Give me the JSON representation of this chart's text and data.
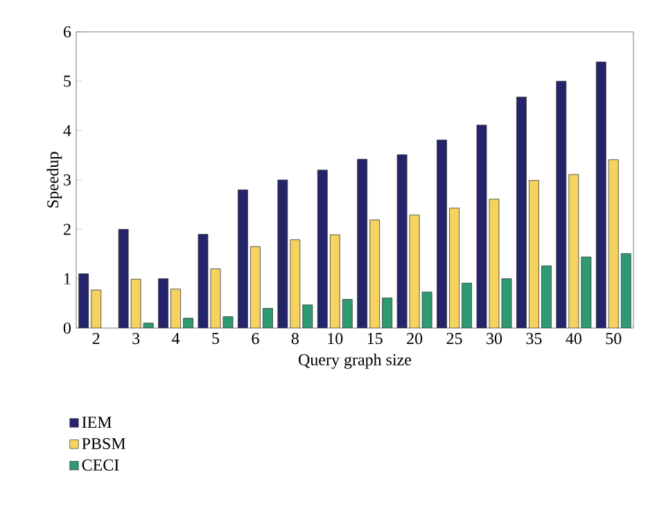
{
  "chart_data": {
    "type": "bar",
    "xlabel": "Query graph size",
    "ylabel": "Speedup",
    "categories": [
      "2",
      "3",
      "4",
      "5",
      "6",
      "8",
      "10",
      "15",
      "20",
      "25",
      "30",
      "35",
      "40",
      "50"
    ],
    "ylim": [
      0,
      6
    ],
    "yticks": [
      0,
      1,
      2,
      3,
      4,
      5,
      6
    ],
    "legend": "bottom left",
    "grid": false,
    "series": [
      {
        "name": "IEM",
        "color": "#24246b",
        "values": [
          1.1,
          2.0,
          1.0,
          1.9,
          2.8,
          3.0,
          3.2,
          3.42,
          3.51,
          3.81,
          4.11,
          4.68,
          5.0,
          5.39
        ]
      },
      {
        "name": "PBSM",
        "color": "#f5d35e",
        "values": [
          0.77,
          0.99,
          0.79,
          1.2,
          1.65,
          1.79,
          1.89,
          2.19,
          2.29,
          2.43,
          2.61,
          2.99,
          3.11,
          3.41
        ]
      },
      {
        "name": "CECI",
        "color": "#2e9a72",
        "values": [
          null,
          0.1,
          0.2,
          0.23,
          0.4,
          0.47,
          0.58,
          0.61,
          0.73,
          0.91,
          1.0,
          1.26,
          1.44,
          1.51
        ]
      }
    ]
  }
}
